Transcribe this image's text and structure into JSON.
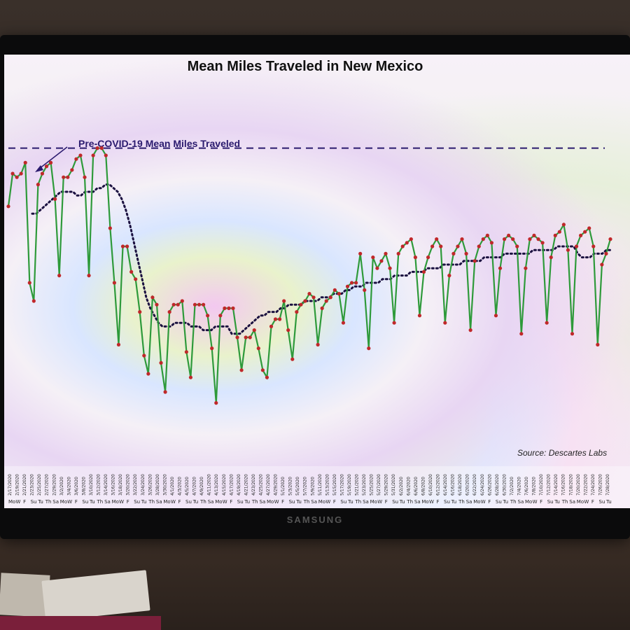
{
  "scene": {
    "tv_brand": "SAMSUNG"
  },
  "slide": {
    "title": "Mean Miles Traveled in New Mexico",
    "source": "Source: Descartes Labs",
    "annotation": "Pre-COVID-19 Mean Miles Traveled"
  },
  "chart_data": {
    "type": "line",
    "title": "Mean Miles Traveled in New Mexico",
    "ylim": [
      0,
      100
    ],
    "grid": false,
    "colors": {
      "line": "#2e9a3a",
      "markers": "#c0282a",
      "trend": "#1b1140",
      "baseline": "#2a1a6e"
    },
    "baseline_value": 82,
    "series": [
      {
        "values": [
          66,
          75,
          74,
          75,
          78,
          45,
          40,
          72,
          75,
          77,
          78,
          68,
          47,
          74,
          74,
          76,
          79,
          80,
          74,
          47,
          80,
          82,
          82,
          80,
          60,
          45,
          28,
          55,
          55,
          48,
          46,
          37,
          25,
          20,
          41,
          39,
          23,
          15,
          37,
          39,
          39,
          40,
          26,
          19,
          39,
          39,
          39,
          36,
          27,
          12,
          36,
          38,
          38,
          38,
          30,
          21,
          30,
          30,
          32,
          27,
          21,
          19,
          33,
          35,
          35,
          40,
          32,
          24,
          37,
          39,
          40,
          42,
          41,
          28,
          38,
          40,
          41,
          43,
          42,
          34,
          44,
          45,
          45,
          53,
          43,
          27,
          52,
          49,
          51,
          53,
          49,
          34,
          53,
          55,
          56,
          57,
          52,
          36,
          48,
          52,
          55,
          57,
          55,
          34,
          47,
          53,
          55,
          57,
          53,
          32,
          51,
          55,
          57,
          58,
          56,
          36,
          49,
          57,
          58,
          57,
          55,
          31,
          49,
          57,
          58,
          57,
          56,
          34,
          52,
          58,
          59,
          61,
          54,
          31,
          55,
          58,
          59,
          60,
          55,
          28,
          50,
          53,
          57
        ]
      },
      {
        "name": "7-day average",
        "values": [
          64,
          64,
          65,
          66,
          67,
          68,
          69,
          70,
          70,
          70,
          70,
          69,
          69,
          70,
          70,
          70,
          71,
          71,
          72,
          72,
          71,
          70,
          68,
          65,
          61,
          56,
          51,
          46,
          41,
          38,
          36,
          34,
          33,
          33,
          33,
          34,
          34,
          34,
          34,
          33,
          33,
          33,
          32,
          32,
          32,
          33,
          33,
          33,
          33,
          31,
          31,
          31,
          32,
          33,
          34,
          35,
          36,
          36,
          37,
          37,
          37,
          38,
          38,
          39,
          39,
          39,
          39,
          40,
          40,
          40,
          40,
          41,
          41,
          41,
          42,
          42,
          42,
          43,
          43,
          44,
          44,
          44,
          45,
          45,
          45,
          45,
          46,
          46,
          46,
          47,
          47,
          47,
          47,
          48,
          48,
          48,
          48,
          49,
          49,
          49,
          49,
          50,
          50,
          50,
          50,
          50,
          51,
          51,
          51,
          51,
          51,
          52,
          52,
          52,
          52,
          52,
          53,
          53,
          53,
          53,
          53,
          53,
          53,
          54,
          54,
          54,
          54,
          54,
          54,
          55,
          55,
          55,
          55,
          55,
          53,
          52,
          52,
          52,
          53,
          53,
          53,
          54,
          54
        ]
      }
    ],
    "x_labels": [
      "2/17/2020",
      "2/19/2020",
      "2/21/2020",
      "2/23/2020",
      "2/25/2020",
      "2/27/2020",
      "2/29/2020",
      "3/2/2020",
      "3/4/2020",
      "3/6/2020",
      "3/8/2020",
      "3/10/2020",
      "3/12/2020",
      "3/14/2020",
      "3/16/2020",
      "3/18/2020",
      "3/20/2020",
      "3/22/2020",
      "3/24/2020",
      "3/26/2020",
      "3/28/2020",
      "3/30/2020",
      "4/1/2020",
      "4/3/2020",
      "4/5/2020",
      "4/7/2020",
      "4/9/2020",
      "4/11/2020",
      "4/13/2020",
      "4/15/2020",
      "4/17/2020",
      "4/19/2020",
      "4/21/2020",
      "4/23/2020",
      "4/25/2020",
      "4/27/2020",
      "4/29/2020",
      "5/1/2020",
      "5/3/2020",
      "5/5/2020",
      "5/7/2020",
      "5/9/2020",
      "5/11/2020",
      "5/13/2020",
      "5/15/2020",
      "5/17/2020",
      "5/19/2020",
      "5/21/2020",
      "5/23/2020",
      "5/25/2020",
      "5/27/2020",
      "5/29/2020",
      "5/31/2020",
      "6/2/2020",
      "6/4/2020",
      "6/6/2020",
      "6/8/2020",
      "6/10/2020",
      "6/12/2020",
      "6/14/2020",
      "6/16/2020",
      "6/18/2020",
      "6/20/2020",
      "6/22/2020",
      "6/24/2020",
      "6/26/2020",
      "6/28/2020",
      "6/30/2020",
      "7/2/2020",
      "7/4/2020",
      "7/6/2020",
      "7/8/2020",
      "7/10/2020",
      "7/12/2020",
      "7/14/2020",
      "7/16/2020",
      "7/18/2020",
      "7/20/2020",
      "7/22/2020",
      "7/24/2020",
      "7/26/2020",
      "7/28/2020"
    ],
    "day_labels": [
      "Mo",
      "W",
      "F",
      "Su",
      "Tu",
      "Th",
      "Sa",
      "Mo",
      "W",
      "F",
      "Su",
      "Tu",
      "Th",
      "Sa",
      "Mo",
      "W",
      "F",
      "Su",
      "Tu",
      "Th",
      "Sa",
      "Mo",
      "W",
      "F",
      "Su",
      "Tu",
      "Th",
      "Sa",
      "Mo",
      "W",
      "F",
      "Su",
      "Tu",
      "Th",
      "Sa",
      "Mo",
      "W",
      "F",
      "Su",
      "Tu",
      "Th",
      "Sa",
      "Mo",
      "W",
      "F",
      "Su",
      "Tu",
      "Th",
      "Sa",
      "Mo",
      "W",
      "F",
      "Su",
      "Tu",
      "Th",
      "Sa",
      "Mo",
      "W",
      "F",
      "Su",
      "Tu",
      "Th",
      "Sa",
      "Mo",
      "W",
      "F",
      "Su",
      "Tu",
      "Th",
      "Sa",
      "Mo",
      "W",
      "F",
      "Su",
      "Tu",
      "Th",
      "Sa",
      "Mo",
      "W",
      "F",
      "Su",
      "Tu"
    ]
  }
}
